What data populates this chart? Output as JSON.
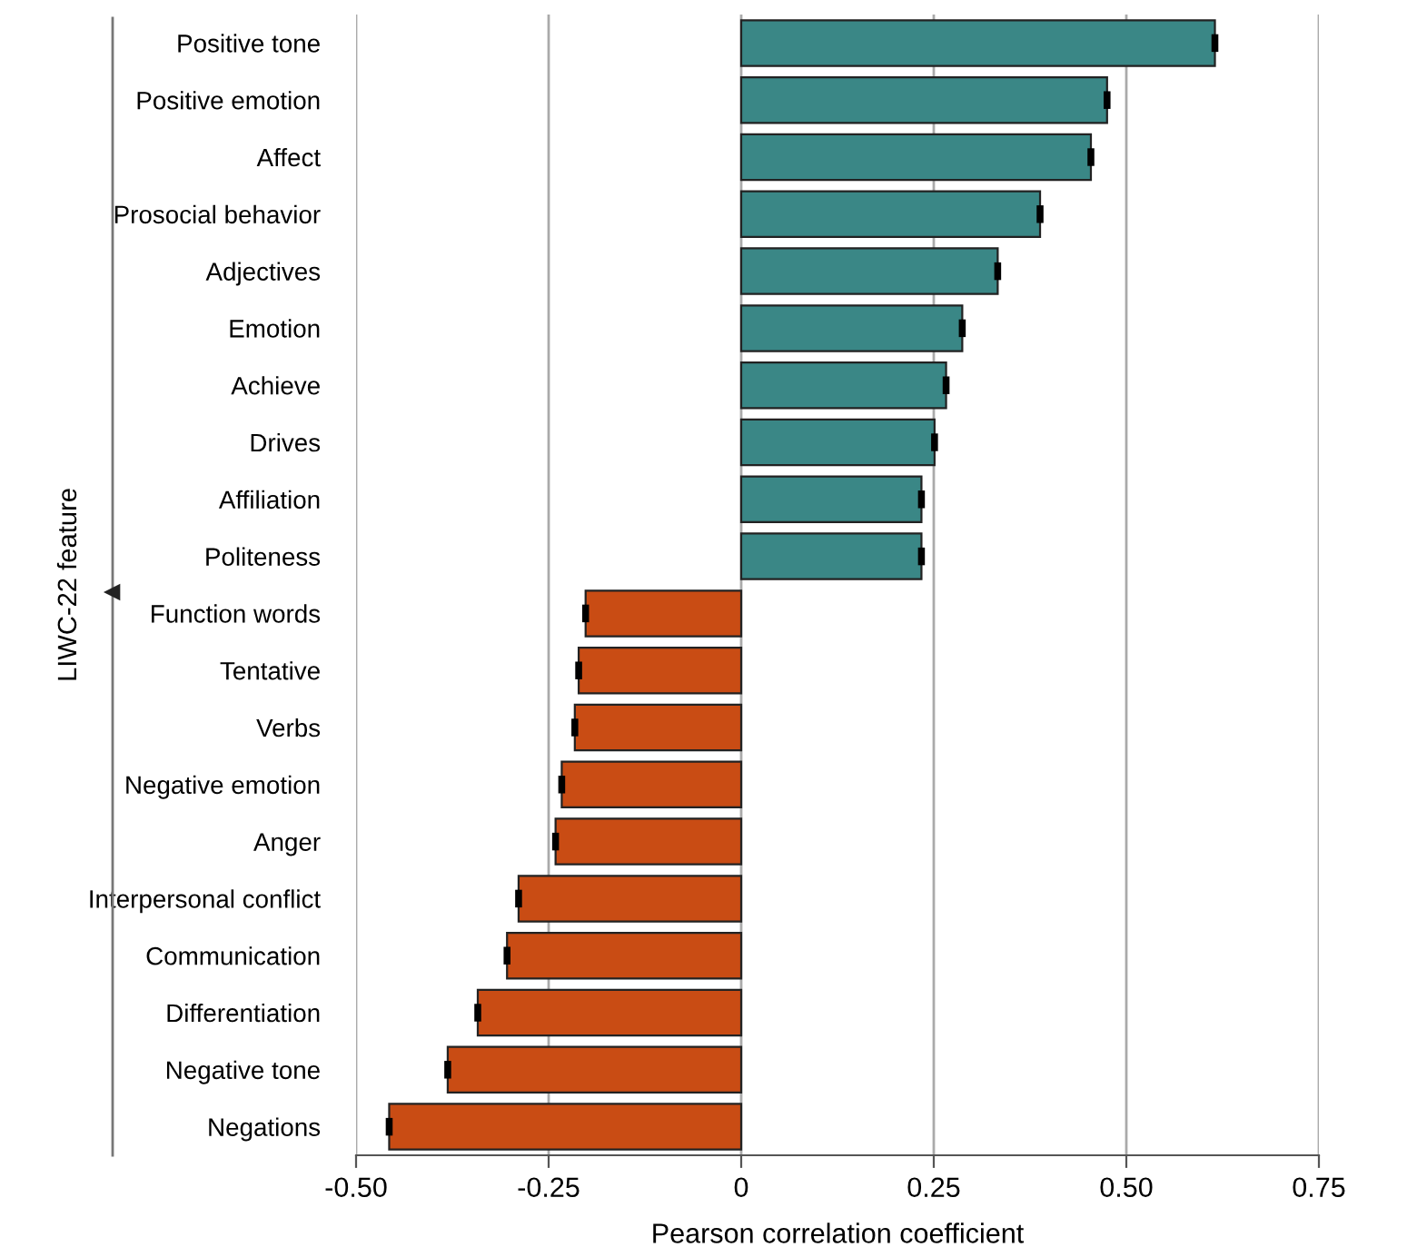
{
  "chart_data": {
    "type": "bar",
    "orientation": "horizontal",
    "xlabel": "Pearson correlation coefficient",
    "ylabel": "LIWC-22 feature",
    "categories": [
      "Positive tone",
      "Positive emotion",
      "Affect",
      "Prosocial behavior",
      "Adjectives",
      "Emotion",
      "Achieve",
      "Drives",
      "Affiliation",
      "Politeness",
      "Function words",
      "Tentative",
      "Verbs",
      "Negative emotion",
      "Anger",
      "Interpersonal conflict",
      "Communication",
      "Differentiation",
      "Negative tone",
      "Negations"
    ],
    "values": [
      0.615,
      0.475,
      0.454,
      0.388,
      0.333,
      0.287,
      0.266,
      0.251,
      0.234,
      0.234,
      -0.202,
      -0.211,
      -0.216,
      -0.233,
      -0.241,
      -0.289,
      -0.304,
      -0.342,
      -0.381,
      -0.457
    ],
    "errors": [
      0.002,
      0.002,
      0.002,
      0.002,
      0.002,
      0.002,
      0.002,
      0.002,
      0.002,
      0.002,
      0.002,
      0.002,
      0.002,
      0.002,
      0.002,
      0.002,
      0.002,
      0.002,
      0.002,
      0.002
    ],
    "colors": [
      "#3a8786",
      "#3a8786",
      "#3a8786",
      "#3a8786",
      "#3a8786",
      "#3a8786",
      "#3a8786",
      "#3a8786",
      "#3a8786",
      "#3a8786",
      "#c94c14",
      "#c94c14",
      "#c94c14",
      "#c94c14",
      "#c94c14",
      "#c94c14",
      "#c94c14",
      "#c94c14",
      "#c94c14",
      "#c94c14"
    ],
    "xlim": [
      -0.5,
      0.75
    ],
    "xticks": [
      {
        "value": -0.5,
        "label": "-0.50"
      },
      {
        "value": -0.25,
        "label": "-0.25"
      },
      0,
      {
        "value": 0.25,
        "label": "0.25"
      },
      {
        "value": 0.5,
        "label": "0.50"
      },
      {
        "value": 0.75,
        "label": "0.75"
      }
    ],
    "grid": "x",
    "legend": false
  }
}
